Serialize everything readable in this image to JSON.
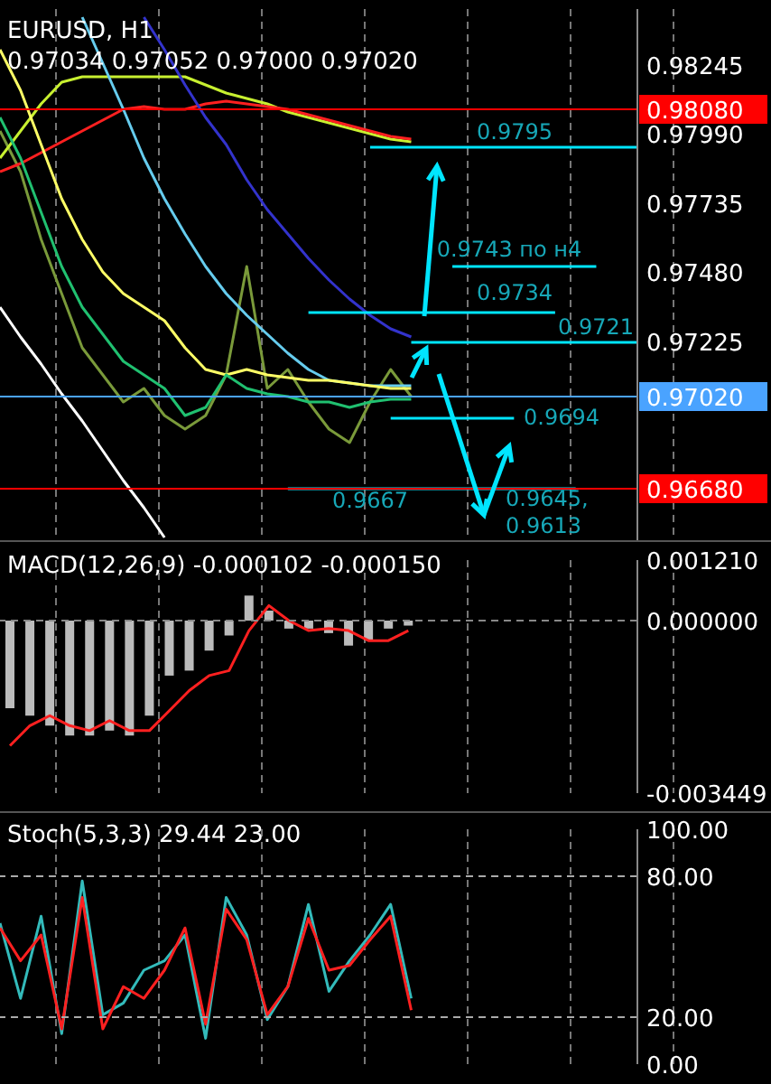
{
  "chart_data": [
    {
      "type": "line",
      "title": "EURUSD, H1",
      "subtitle": "0.97034 0.97052 0.97000 0.97020",
      "categories": [
        null,
        null,
        null,
        null,
        null,
        null,
        null,
        null,
        null,
        null,
        null,
        null,
        null,
        null,
        null,
        null,
        null,
        null,
        null,
        null,
        null,
        null,
        null,
        null,
        null,
        null,
        null,
        null,
        null,
        null,
        null,
        null
      ],
      "ylim": [
        0.9649,
        0.9845
      ],
      "yticks": [
        0.98245,
        {
          "value": 0.9799,
          "label": "0.97990"
        },
        0.97735,
        {
          "value": 0.9748,
          "label": "0.97480"
        },
        0.97225
      ],
      "grid": "x",
      "tick_labels": "y",
      "series": [
        {
          "color": "#7a9a3a",
          "values": [
            0.98,
            0.9785,
            0.976,
            0.974,
            0.972,
            0.971,
            0.97,
            0.9705,
            0.9695,
            0.969,
            0.9695,
            0.971,
            0.975,
            0.9705,
            0.9712,
            0.97,
            0.969,
            0.9685,
            0.97,
            0.9712,
            0.9702,
            null,
            null,
            null,
            null,
            null,
            null,
            null,
            null,
            null,
            null,
            null
          ]
        },
        {
          "color": "#c8f030",
          "values": [
            0.979,
            0.98,
            0.981,
            0.9818,
            0.982,
            0.982,
            0.982,
            0.982,
            0.982,
            0.982,
            0.9817,
            0.9814,
            0.9812,
            0.981,
            0.9807,
            0.9805,
            0.9803,
            0.9801,
            0.9799,
            0.9797,
            0.9796,
            null,
            null,
            null,
            null,
            null,
            null,
            null,
            null,
            null,
            null,
            null
          ]
        },
        {
          "color": "#ff2020",
          "values": [
            0.9785,
            0.9788,
            0.9792,
            0.9796,
            0.98,
            0.9804,
            0.9808,
            0.9809,
            0.9808,
            0.9808,
            0.981,
            0.9811,
            0.981,
            0.9809,
            0.9808,
            0.9806,
            0.9804,
            0.9802,
            0.98,
            0.9798,
            0.9797,
            null,
            null,
            null,
            null,
            null,
            null,
            null,
            null,
            null,
            null,
            null
          ]
        },
        {
          "color": "#3333cc",
          "values": [
            null,
            null,
            null,
            null,
            null,
            null,
            null,
            0.9842,
            0.983,
            0.9817,
            0.9805,
            0.9795,
            0.9782,
            0.9771,
            0.9762,
            0.9753,
            0.9745,
            0.9738,
            0.9732,
            0.9727,
            0.9724,
            null,
            null,
            null,
            null,
            null,
            null,
            null,
            null,
            null,
            null,
            null
          ]
        },
        {
          "color": "#66ccee",
          "values": [
            null,
            null,
            null,
            null,
            0.9842,
            0.9825,
            0.9808,
            0.979,
            0.9775,
            0.9762,
            0.975,
            0.974,
            0.9732,
            0.9725,
            0.9718,
            0.9712,
            0.9708,
            0.9707,
            0.9706,
            0.9706,
            0.9706,
            null,
            null,
            null,
            null,
            null,
            null,
            null,
            null,
            null,
            null,
            null
          ]
        },
        {
          "color": "#ffff66",
          "values": [
            0.983,
            0.9815,
            0.9795,
            0.9775,
            0.976,
            0.9748,
            0.974,
            0.9735,
            0.973,
            0.972,
            0.9712,
            0.971,
            0.9712,
            0.971,
            0.9709,
            0.9708,
            0.9708,
            0.9707,
            0.9706,
            0.9705,
            0.9705,
            null,
            null,
            null,
            null,
            null,
            null,
            null,
            null,
            null,
            null,
            null
          ]
        },
        {
          "color": "#20c070",
          "values": [
            0.9805,
            0.979,
            0.977,
            0.975,
            0.9735,
            0.9725,
            0.9715,
            0.971,
            0.9705,
            0.9695,
            0.9698,
            0.971,
            0.9705,
            0.9703,
            0.9702,
            0.97,
            0.97,
            0.9698,
            0.97,
            0.9701,
            0.9701,
            null,
            null,
            null,
            null,
            null,
            null,
            null,
            null,
            null,
            null,
            null
          ]
        },
        {
          "color": "#ffffff",
          "values": [
            0.9735,
            0.9724,
            0.9714,
            0.9703,
            0.9693,
            0.9682,
            0.9671,
            0.9661,
            0.965,
            null,
            null,
            null,
            null,
            null,
            null,
            null,
            null,
            null,
            null,
            null,
            null,
            null,
            null,
            null,
            null,
            null,
            null,
            null,
            null,
            null,
            null,
            null
          ]
        },
        {
          "color": "#00e5ff",
          "values": [
            null,
            null,
            null,
            null,
            null,
            null,
            null,
            null,
            null,
            null,
            null,
            null,
            null,
            null,
            null,
            null,
            null,
            null,
            0.9794,
            0.9794,
            0.9794,
            0.9794,
            0.9794,
            0.9794,
            0.9794,
            0.9794,
            0.9794,
            0.9794,
            0.9794,
            0.9794,
            0.9794,
            0.9794
          ]
        },
        {
          "color": "#00e5ff",
          "values": [
            null,
            null,
            null,
            null,
            null,
            null,
            null,
            null,
            null,
            null,
            null,
            null,
            null,
            null,
            null,
            null,
            null,
            null,
            null,
            null,
            null,
            null,
            0.975,
            0.975,
            0.975,
            0.975,
            0.975,
            0.975,
            0.975,
            0.975,
            null,
            null
          ]
        },
        {
          "color": "#00e5ff",
          "values": [
            null,
            null,
            null,
            null,
            null,
            null,
            null,
            null,
            null,
            null,
            null,
            null,
            null,
            null,
            null,
            0.9733,
            0.9733,
            0.9733,
            0.9733,
            0.9733,
            0.9733,
            0.9733,
            0.9733,
            0.9733,
            0.9733,
            0.9733,
            0.9733,
            0.9733,
            null,
            null,
            null,
            null
          ]
        },
        {
          "color": "#00e5ff",
          "values": [
            null,
            null,
            null,
            null,
            null,
            null,
            null,
            null,
            null,
            null,
            null,
            null,
            null,
            null,
            null,
            null,
            null,
            null,
            null,
            null,
            0.9722,
            0.9722,
            0.9722,
            0.9722,
            0.9722,
            0.9722,
            0.9722,
            0.9722,
            0.9722,
            0.9722,
            0.9722,
            0.9722
          ]
        },
        {
          "color": "#00e5ff",
          "values": [
            null,
            null,
            null,
            null,
            null,
            null,
            null,
            null,
            null,
            null,
            null,
            null,
            null,
            null,
            null,
            null,
            null,
            null,
            null,
            0.9694,
            0.9694,
            0.9694,
            0.9694,
            0.9694,
            0.9694,
            0.9694,
            null,
            null,
            null,
            null,
            null,
            null
          ]
        },
        {
          "color": "#00e5ff",
          "values": [
            null,
            null,
            null,
            null,
            null,
            null,
            null,
            null,
            null,
            null,
            null,
            null,
            null,
            null,
            0.9668,
            0.9668,
            0.9668,
            0.9668,
            0.9668,
            0.9668,
            0.9668,
            0.9668,
            0.9668,
            0.9668,
            0.9668,
            0.9668,
            0.9668,
            0.9668,
            0.9668,
            null,
            null,
            null
          ]
        }
      ],
      "ref_lines": [
        {
          "axis": "y",
          "value": 0.9808,
          "label": "0.98080",
          "color": "#ff0000"
        },
        {
          "axis": "y",
          "value": 0.9668,
          "label": "0.96680",
          "color": "#ff0000"
        },
        {
          "axis": "y",
          "value": 0.9702,
          "label": "0.97020",
          "color": "#4aa3ff"
        }
      ],
      "annotations": [
        "0.9795",
        "0.9743 по н4",
        "0.9734",
        "0.9721",
        "0.9694",
        "0.9667",
        "0.9645,\n0.9613"
      ]
    },
    {
      "type": "bar",
      "title": "MACD(12,26,9) -0.000102 -0.000150",
      "categories": [
        null,
        null,
        null,
        null,
        null,
        null,
        null,
        null,
        null,
        null,
        null,
        null,
        null,
        null,
        null,
        null,
        null,
        null,
        null,
        null,
        null,
        null,
        null,
        null,
        null,
        null,
        null,
        null,
        null,
        null,
        null,
        null
      ],
      "ylim": [
        -0.003449,
        0.00121
      ],
      "yticks": [
        {
          "value": 0.00121,
          "label": "0.001210"
        },
        {
          "value": 0,
          "label": "0.000000"
        },
        {
          "value": -0.003449,
          "label": "-0.003449"
        }
      ],
      "grid": "x",
      "tick_labels": "y",
      "series": [
        {
          "color": "#bbbbbb",
          "values": [
            -0.00175,
            -0.0019,
            -0.0021,
            -0.0023,
            -0.0023,
            -0.0022,
            -0.0023,
            -0.0019,
            -0.0011,
            -0.001,
            -0.0006,
            -0.0003,
            0.0005,
            0.0002,
            -0.00016,
            -0.00016,
            -0.00025,
            -0.0005,
            -0.0004,
            -0.00016,
            -0.0001,
            null,
            null,
            null,
            null,
            null,
            null,
            null,
            null,
            null,
            null,
            null
          ]
        },
        {
          "type": "line",
          "color": "#ff2020",
          "values": [
            -0.0025,
            -0.0021,
            -0.0019,
            -0.0021,
            -0.0022,
            -0.002,
            -0.0022,
            -0.0022,
            -0.0018,
            -0.0014,
            -0.0011,
            -0.001,
            -0.0002,
            0.0003,
            0,
            -0.0002,
            -0.00016,
            -0.0002,
            -0.0004,
            -0.0004,
            -0.0002,
            null,
            null,
            null,
            null,
            null,
            null,
            null,
            null,
            null,
            null,
            null
          ]
        }
      ],
      "ref_lines": [
        {
          "axis": "y",
          "value": 0,
          "color": "#888888",
          "line_style": "dashed"
        }
      ]
    },
    {
      "type": "line",
      "title": "Stoch(5,3,3) 29.44 23.00",
      "categories": [
        null,
        null,
        null,
        null,
        null,
        null,
        null,
        null,
        null,
        null,
        null,
        null,
        null,
        null,
        null,
        null,
        null,
        null,
        null,
        null,
        null,
        null,
        null,
        null,
        null,
        null,
        null,
        null,
        null,
        null,
        null,
        null
      ],
      "ylim": [
        0,
        100
      ],
      "yticks": [
        {
          "value": 0,
          "label": "0.00"
        },
        {
          "value": 20,
          "label": "20.00"
        },
        {
          "value": 80,
          "label": "80.00"
        },
        {
          "value": 100,
          "label": "100.00"
        }
      ],
      "grid": "x",
      "tick_labels": "y",
      "series": [
        {
          "color": "#33bbbb",
          "values": [
            60,
            28,
            63,
            13,
            78,
            21,
            26,
            40,
            44,
            55,
            11,
            71,
            55,
            19,
            33,
            68,
            31,
            44,
            55,
            68,
            28,
            null,
            null,
            null,
            null,
            null,
            null,
            null,
            null,
            null,
            null,
            null
          ]
        },
        {
          "color": "#ff2020",
          "values": [
            58,
            44,
            55,
            15,
            71,
            15,
            33,
            28,
            40,
            58,
            17,
            66,
            53,
            21,
            33,
            62,
            40,
            42,
            53,
            63,
            23,
            null,
            null,
            null,
            null,
            null,
            null,
            null,
            null,
            null,
            null,
            null
          ]
        }
      ],
      "ref_lines": [
        {
          "axis": "y",
          "value": 80,
          "color": "#aaaaaa",
          "line_style": "dashed"
        },
        {
          "axis": "y",
          "value": 20,
          "color": "#aaaaaa",
          "line_style": "dashed"
        }
      ]
    }
  ]
}
